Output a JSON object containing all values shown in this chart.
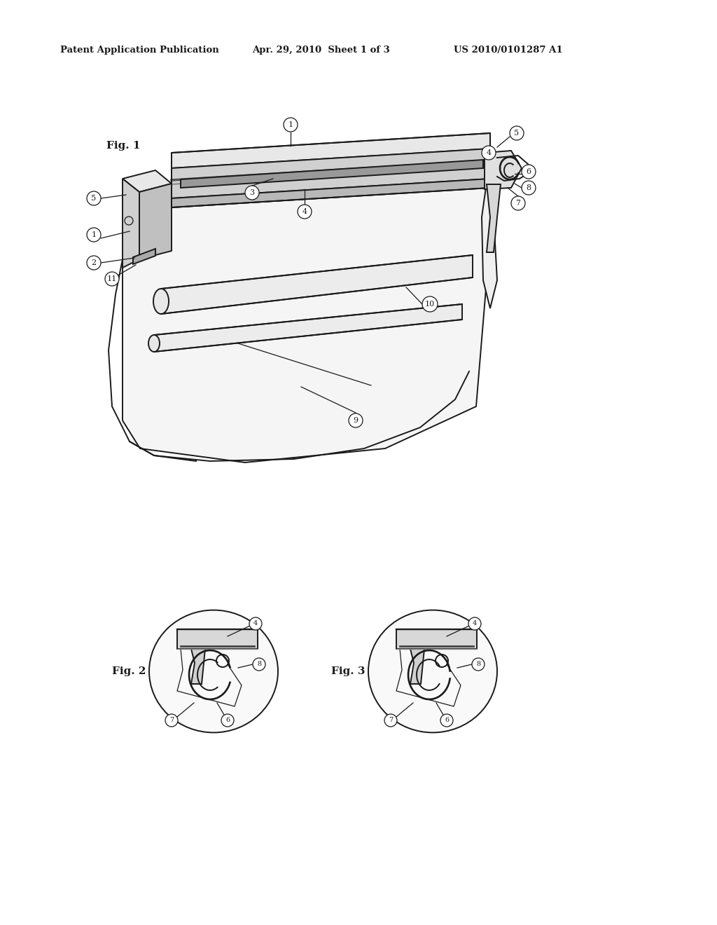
{
  "bg_color": "#ffffff",
  "header_text1": "Patent Application Publication",
  "header_text2": "Apr. 29, 2010  Sheet 1 of 3",
  "header_text3": "US 2010/0101287 A1",
  "fig1_label": "Fig. 1",
  "fig2_label": "Fig. 2",
  "fig3_label": "Fig. 3",
  "line_color": "#1a1a1a"
}
